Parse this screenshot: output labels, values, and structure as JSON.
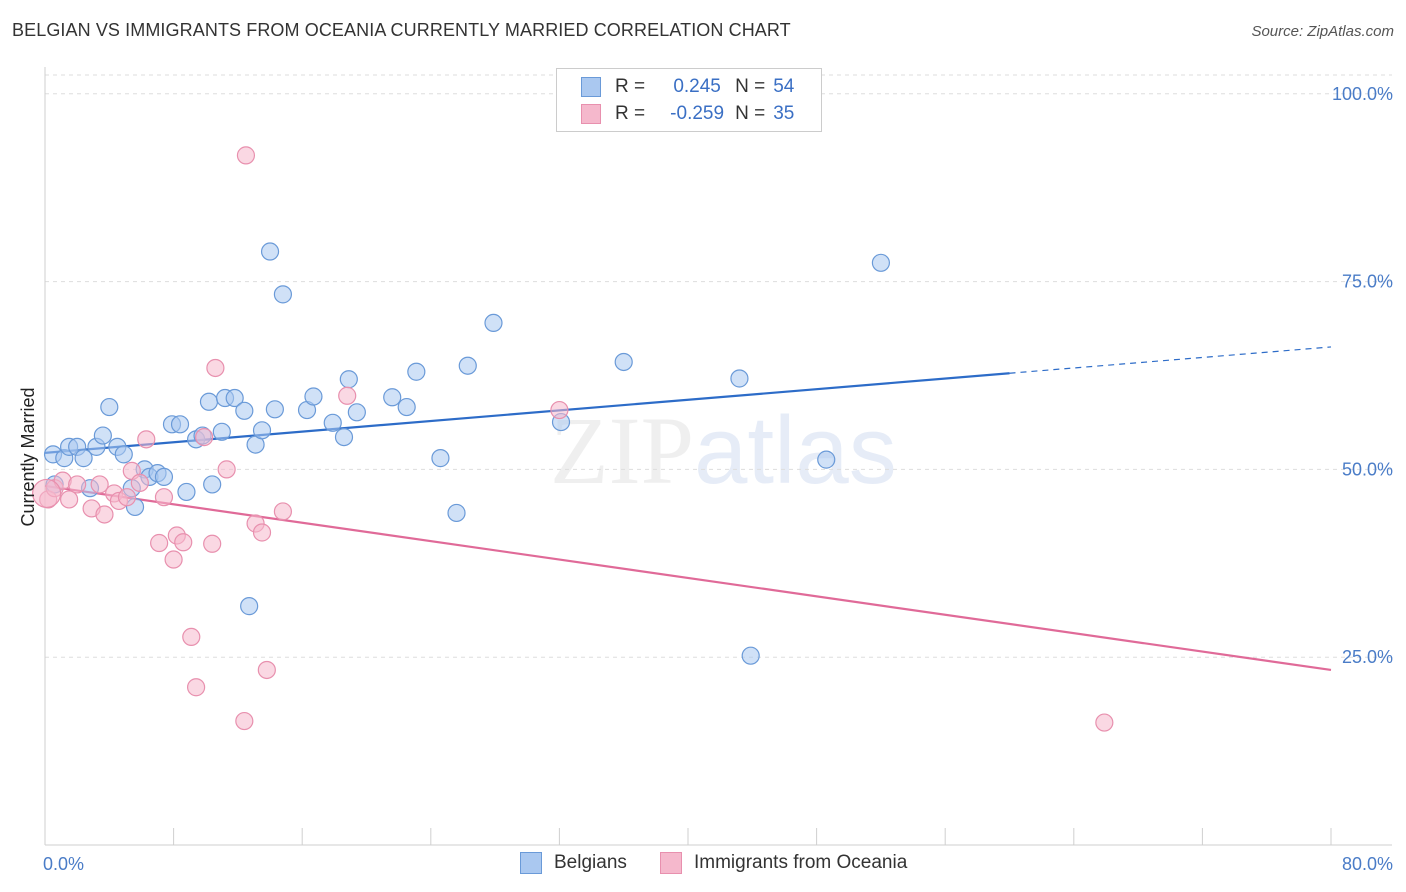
{
  "title": "BELGIAN VS IMMIGRANTS FROM OCEANIA CURRENTLY MARRIED CORRELATION CHART",
  "source": "Source: ZipAtlas.com",
  "watermark": {
    "zip": "ZIP",
    "atlas": "atlas"
  },
  "legend": {
    "belgians": {
      "r_label": "R =",
      "r_value": "0.245",
      "n_label": "N =",
      "n_value": "54"
    },
    "oceania": {
      "r_label": "R =",
      "r_value": "-0.259",
      "n_label": "N =",
      "n_value": "35"
    }
  },
  "bottom_legend": {
    "belgians": "Belgians",
    "oceania": "Immigrants from Oceania"
  },
  "colors": {
    "blue_fill": "#aac8f0",
    "blue_stroke": "#6a9ad8",
    "blue_line": "#2d6cc8",
    "pink_fill": "#f5b8cc",
    "pink_stroke": "#e890ae",
    "pink_line": "#e06a98",
    "grid": "#dddddd",
    "axis_text": "#4a7cc7"
  },
  "chart_data": {
    "type": "scatter",
    "title": "BELGIAN VS IMMIGRANTS FROM OCEANIA CURRENTLY MARRIED CORRELATION CHART",
    "xlabel": "",
    "ylabel": "Currently Married",
    "xlim": [
      0,
      80
    ],
    "ylim": [
      0,
      102.5
    ],
    "x_tick_labels": [
      "0.0%",
      "80.0%"
    ],
    "y_ticks": [
      25,
      50,
      75,
      100
    ],
    "y_tick_labels": [
      "25.0%",
      "50.0%",
      "75.0%",
      "100.0%"
    ],
    "series": [
      {
        "name": "Belgians",
        "points": [
          [
            0.5,
            52.0
          ],
          [
            0.6,
            48.0
          ],
          [
            1.2,
            51.5
          ],
          [
            1.5,
            53.0
          ],
          [
            2.0,
            53.0
          ],
          [
            2.4,
            51.5
          ],
          [
            2.8,
            47.5
          ],
          [
            3.2,
            53.0
          ],
          [
            3.6,
            54.5
          ],
          [
            4.0,
            58.3
          ],
          [
            4.5,
            53.0
          ],
          [
            4.9,
            52.0
          ],
          [
            5.4,
            47.5
          ],
          [
            5.6,
            45.0
          ],
          [
            6.2,
            50.0
          ],
          [
            6.5,
            49.0
          ],
          [
            7.0,
            49.5
          ],
          [
            7.4,
            49.0
          ],
          [
            7.9,
            56.0
          ],
          [
            8.4,
            56.0
          ],
          [
            8.8,
            47.0
          ],
          [
            9.4,
            54.0
          ],
          [
            9.8,
            54.5
          ],
          [
            10.2,
            59.0
          ],
          [
            10.4,
            48.0
          ],
          [
            11.0,
            55.0
          ],
          [
            11.2,
            59.5
          ],
          [
            11.8,
            59.5
          ],
          [
            12.4,
            57.8
          ],
          [
            12.7,
            31.8
          ],
          [
            13.1,
            53.3
          ],
          [
            13.5,
            55.2
          ],
          [
            14.0,
            79.0
          ],
          [
            14.3,
            58.0
          ],
          [
            14.8,
            73.3
          ],
          [
            16.3,
            57.9
          ],
          [
            16.7,
            59.7
          ],
          [
            17.9,
            56.2
          ],
          [
            18.6,
            54.3
          ],
          [
            18.9,
            62.0
          ],
          [
            19.4,
            57.6
          ],
          [
            21.6,
            59.6
          ],
          [
            22.5,
            58.3
          ],
          [
            23.1,
            63.0
          ],
          [
            24.6,
            51.5
          ],
          [
            25.6,
            44.2
          ],
          [
            26.3,
            63.8
          ],
          [
            27.9,
            69.5
          ],
          [
            32.1,
            56.3
          ],
          [
            36.0,
            64.3
          ],
          [
            43.2,
            62.1
          ],
          [
            43.9,
            25.2
          ],
          [
            48.6,
            51.3
          ],
          [
            52.0,
            77.5
          ]
        ]
      },
      {
        "name": "Immigrants from Oceania",
        "points": [
          [
            0.2,
            46.0
          ],
          [
            0.6,
            47.5
          ],
          [
            1.1,
            48.5
          ],
          [
            1.5,
            46.0
          ],
          [
            2.0,
            48.0
          ],
          [
            2.9,
            44.8
          ],
          [
            3.4,
            48.0
          ],
          [
            3.7,
            44.0
          ],
          [
            4.3,
            46.8
          ],
          [
            4.6,
            45.8
          ],
          [
            5.1,
            46.3
          ],
          [
            5.4,
            49.8
          ],
          [
            5.9,
            48.2
          ],
          [
            6.3,
            54.0
          ],
          [
            7.1,
            40.2
          ],
          [
            7.4,
            46.3
          ],
          [
            8.0,
            38.0
          ],
          [
            8.2,
            41.2
          ],
          [
            8.6,
            40.3
          ],
          [
            9.1,
            27.7
          ],
          [
            9.4,
            21.0
          ],
          [
            9.9,
            54.3
          ],
          [
            10.4,
            40.1
          ],
          [
            10.6,
            63.5
          ],
          [
            11.3,
            50.0
          ],
          [
            12.4,
            16.5
          ],
          [
            12.5,
            91.8
          ],
          [
            13.1,
            42.8
          ],
          [
            13.5,
            41.6
          ],
          [
            13.8,
            23.3
          ],
          [
            14.8,
            44.4
          ],
          [
            18.8,
            59.8
          ],
          [
            32.0,
            57.9
          ],
          [
            65.9,
            16.3
          ],
          [
            0.1,
            46.8
          ]
        ]
      }
    ],
    "trend_lines": [
      {
        "name": "Belgians",
        "from": [
          0,
          52.2
        ],
        "to": [
          60.0,
          62.8
        ],
        "dashed_to": [
          80.0,
          66.3
        ]
      },
      {
        "name": "Immigrants from Oceania",
        "from": [
          0,
          47.8
        ],
        "to": [
          80.0,
          23.3
        ]
      }
    ]
  }
}
